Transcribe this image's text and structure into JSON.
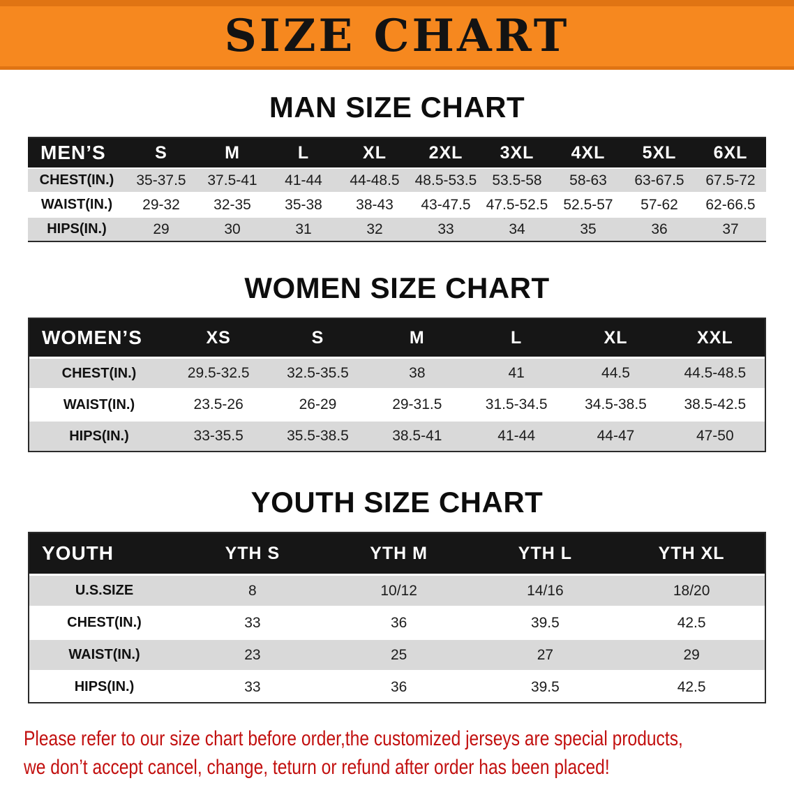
{
  "banner": {
    "title": "SIZE CHART"
  },
  "colors": {
    "banner_orange": "#f6881f",
    "table_header_black": "#161616",
    "row_gray": "#d9d9d9",
    "note_red": "#c2100f"
  },
  "sections": [
    {
      "heading": "MAN SIZE CHART",
      "table": {
        "header": [
          "MEN’S",
          "S",
          "M",
          "L",
          "XL",
          "2XL",
          "3XL",
          "4XL",
          "5XL",
          "6XL"
        ],
        "rows": [
          {
            "label": "CHEST(IN.)",
            "values": [
              "35-37.5",
              "37.5-41",
              "41-44",
              "44-48.5",
              "48.5-53.5",
              "53.5-58",
              "58-63",
              "63-67.5",
              "67.5-72"
            ]
          },
          {
            "label": "WAIST(IN.)",
            "values": [
              "29-32",
              "32-35",
              "35-38",
              "38-43",
              "43-47.5",
              "47.5-52.5",
              "52.5-57",
              "57-62",
              "62-66.5"
            ]
          },
          {
            "label": "HIPS(IN.)",
            "values": [
              "29",
              "30",
              "31",
              "32",
              "33",
              "34",
              "35",
              "36",
              "37"
            ]
          }
        ]
      }
    },
    {
      "heading": "WOMEN SIZE CHART",
      "table": {
        "header": [
          "WOMEN’S",
          "XS",
          "S",
          "M",
          "L",
          "XL",
          "XXL"
        ],
        "rows": [
          {
            "label": "CHEST(IN.)",
            "values": [
              "29.5-32.5",
              "32.5-35.5",
              "38",
              "41",
              "44.5",
              "44.5-48.5"
            ]
          },
          {
            "label": "WAIST(IN.)",
            "values": [
              "23.5-26",
              "26-29",
              "29-31.5",
              "31.5-34.5",
              "34.5-38.5",
              "38.5-42.5"
            ]
          },
          {
            "label": "HIPS(IN.)",
            "values": [
              "33-35.5",
              "35.5-38.5",
              "38.5-41",
              "41-44",
              "44-47",
              "47-50"
            ]
          }
        ]
      }
    },
    {
      "heading": "YOUTH SIZE CHART",
      "table": {
        "header": [
          "YOUTH",
          "YTH S",
          "YTH M",
          "YTH L",
          "YTH XL"
        ],
        "rows": [
          {
            "label": "U.S.SIZE",
            "values": [
              "8",
              "10/12",
              "14/16",
              "18/20"
            ]
          },
          {
            "label": "CHEST(IN.)",
            "values": [
              "33",
              "36",
              "39.5",
              "42.5"
            ]
          },
          {
            "label": "WAIST(IN.)",
            "values": [
              "23",
              "25",
              "27",
              "29"
            ]
          },
          {
            "label": "HIPS(IN.)",
            "values": [
              "33",
              "36",
              "39.5",
              "42.5"
            ]
          }
        ]
      }
    }
  ],
  "footer": {
    "line1": "Please refer to our size chart before order,the customized jerseys are special products,",
    "line2": "we don’t accept cancel, change, teturn or refund after order has been placed!"
  }
}
